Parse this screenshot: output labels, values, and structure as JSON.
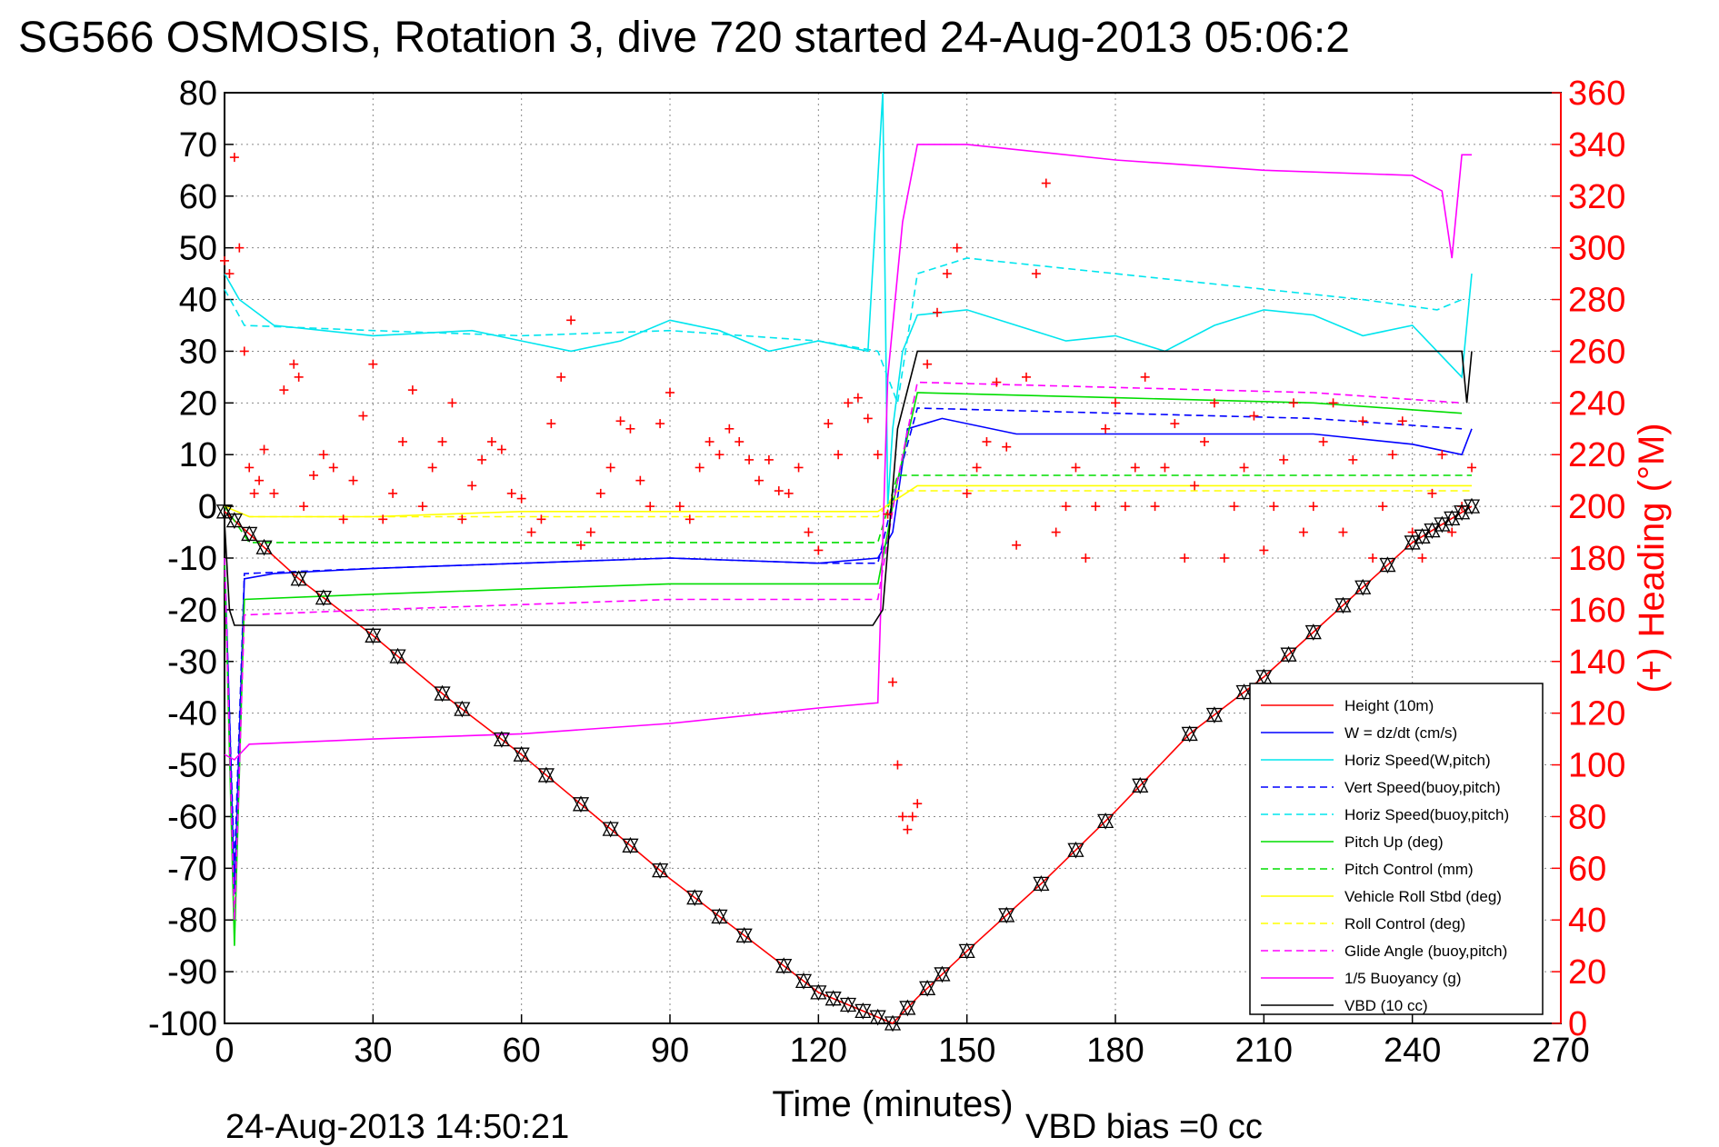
{
  "title": "SG566 OSMOSIS, Rotation 3, dive 720 started 24-Aug-2013 05:06:2",
  "footer_left": "24-Aug-2013 14:50:21",
  "footer_right": "VBD bias =0 cc",
  "colors": {
    "height": "#ff0000",
    "w": "#0000ff",
    "horiz": "#00e5ee",
    "pitch": "#00dd00",
    "roll": "#ffff00",
    "glide": "#ff00ff",
    "vbd": "#000000",
    "heading": "#ff0000"
  },
  "chart_data": {
    "type": "line",
    "title": "SG566 OSMOSIS, Rotation 3, dive 720 started 24-Aug-2013 05:06:2",
    "xlabel": "Time (minutes)",
    "ylabel": "",
    "y2label": "(+) Heading (°M)",
    "xlim": [
      0,
      270
    ],
    "ylim": [
      -100,
      80
    ],
    "y2lim": [
      0,
      360
    ],
    "xticks": [
      0,
      30,
      60,
      90,
      120,
      150,
      180,
      210,
      240,
      270
    ],
    "yticks": [
      80,
      70,
      60,
      50,
      40,
      30,
      20,
      10,
      0,
      -10,
      -20,
      -30,
      -40,
      -50,
      -60,
      -70,
      -80,
      -90,
      -100
    ],
    "y2ticks": [
      360,
      340,
      320,
      300,
      280,
      260,
      240,
      220,
      200,
      180,
      160,
      140,
      120,
      100,
      80,
      60,
      40,
      20,
      0
    ],
    "grid": true,
    "legend_position": "bottom-right",
    "series": [
      {
        "name": "Height (10m)",
        "color": "#ff0000",
        "dash": "solid",
        "x": [
          0,
          15,
          30,
          45,
          60,
          75,
          90,
          105,
          120,
          130,
          135,
          140,
          150,
          165,
          180,
          195,
          210,
          225,
          240,
          252
        ],
        "y": [
          -1,
          -14,
          -25,
          -37,
          -48,
          -60,
          -72,
          -83,
          -94,
          -98,
          -100,
          -95,
          -86,
          -73,
          -59,
          -44,
          -33,
          -20,
          -7,
          0
        ]
      },
      {
        "name": "W = dz/dt (cm/s)",
        "color": "#0000ff",
        "dash": "solid",
        "x": [
          0,
          1,
          2,
          4,
          10,
          30,
          60,
          90,
          120,
          132,
          135,
          138,
          145,
          160,
          190,
          220,
          240,
          250,
          252
        ],
        "y": [
          -10,
          -40,
          -75,
          -14,
          -13,
          -12,
          -11,
          -10,
          -11,
          -10,
          -5,
          15,
          17,
          14,
          14,
          14,
          12,
          10,
          15
        ]
      },
      {
        "name": "Horiz Speed(W,pitch)",
        "color": "#00e5ee",
        "dash": "solid",
        "x": [
          0,
          3,
          10,
          30,
          50,
          60,
          70,
          80,
          90,
          100,
          110,
          120,
          130,
          133,
          134,
          135,
          137,
          140,
          150,
          160,
          170,
          180,
          190,
          200,
          210,
          220,
          230,
          240,
          250,
          252
        ],
        "y": [
          45,
          40,
          35,
          33,
          34,
          32,
          30,
          32,
          36,
          34,
          30,
          32,
          30,
          80,
          0,
          15,
          30,
          37,
          38,
          35,
          32,
          33,
          30,
          35,
          38,
          37,
          33,
          35,
          25,
          45
        ]
      },
      {
        "name": "Vert Speed(buoy,pitch)",
        "color": "#0000ff",
        "dash": "dashed",
        "x": [
          0,
          2,
          4,
          30,
          60,
          90,
          120,
          132,
          136,
          140,
          180,
          220,
          250
        ],
        "y": [
          -10,
          -70,
          -13,
          -12,
          -11,
          -10,
          -11,
          -11,
          5,
          19,
          18,
          17,
          15
        ]
      },
      {
        "name": "Horiz Speed(buoy,pitch)",
        "color": "#00e5ee",
        "dash": "dashed",
        "x": [
          0,
          4,
          30,
          60,
          90,
          120,
          132,
          136,
          140,
          150,
          170,
          190,
          210,
          230,
          245,
          250
        ],
        "y": [
          42,
          35,
          34,
          33,
          34,
          32,
          30,
          20,
          45,
          48,
          46,
          44,
          42,
          40,
          38,
          40
        ]
      },
      {
        "name": "Pitch Up (deg)",
        "color": "#00dd00",
        "dash": "solid",
        "x": [
          0,
          2,
          4,
          30,
          60,
          90,
          120,
          132,
          136,
          140,
          180,
          220,
          250
        ],
        "y": [
          -10,
          -85,
          -18,
          -17,
          -16,
          -15,
          -15,
          -15,
          5,
          22,
          21,
          20,
          18
        ]
      },
      {
        "name": "Pitch Control (mm)",
        "color": "#00dd00",
        "dash": "dashed",
        "x": [
          0,
          5,
          132,
          136,
          252
        ],
        "y": [
          0,
          -7,
          -7,
          6,
          6
        ]
      },
      {
        "name": "Vehicle Roll Stbd (deg)",
        "color": "#ffff00",
        "dash": "solid",
        "x": [
          0,
          5,
          30,
          60,
          90,
          120,
          132,
          140,
          180,
          220,
          252
        ],
        "y": [
          0,
          -2,
          -2,
          -1,
          -1,
          -1,
          -1,
          4,
          4,
          4,
          4
        ]
      },
      {
        "name": "Roll Control (deg)",
        "color": "#ffff00",
        "dash": "dashed",
        "x": [
          0,
          5,
          132,
          136,
          252
        ],
        "y": [
          0,
          -2,
          -2,
          3,
          3
        ]
      },
      {
        "name": "Glide Angle (buoy,pitch)",
        "color": "#ff00ff",
        "dash": "dashed",
        "x": [
          0,
          2,
          4,
          30,
          60,
          90,
          120,
          132,
          136,
          140,
          180,
          220,
          250
        ],
        "y": [
          -10,
          -80,
          -21,
          -20,
          -19,
          -18,
          -18,
          -18,
          5,
          24,
          23,
          22,
          20
        ]
      },
      {
        "name": "1/5 Buoyancy (g)",
        "color": "#ff00ff",
        "dash": "solid",
        "x": [
          0,
          2,
          5,
          30,
          60,
          90,
          120,
          132,
          134,
          137,
          140,
          150,
          180,
          210,
          240,
          246,
          248,
          250,
          252
        ],
        "y": [
          -48,
          -49,
          -46,
          -45,
          -44,
          -42,
          -39,
          -38,
          25,
          55,
          70,
          70,
          67,
          65,
          64,
          61,
          48,
          68,
          68
        ]
      },
      {
        "name": "VBD (10 cc)",
        "color": "#000000",
        "dash": "solid",
        "x": [
          0,
          1,
          2,
          131,
          133,
          136,
          140,
          250,
          251,
          252
        ],
        "y": [
          -3,
          -20,
          -23,
          -23,
          -20,
          15,
          30,
          30,
          20,
          30
        ]
      }
    ],
    "heading_points": [
      [
        0,
        295
      ],
      [
        1,
        290
      ],
      [
        2,
        335
      ],
      [
        3,
        300
      ],
      [
        4,
        260
      ],
      [
        5,
        215
      ],
      [
        6,
        205
      ],
      [
        7,
        210
      ],
      [
        8,
        222
      ],
      [
        10,
        205
      ],
      [
        12,
        245
      ],
      [
        14,
        255
      ],
      [
        15,
        250
      ],
      [
        16,
        200
      ],
      [
        18,
        212
      ],
      [
        20,
        220
      ],
      [
        22,
        215
      ],
      [
        24,
        195
      ],
      [
        26,
        210
      ],
      [
        28,
        235
      ],
      [
        30,
        255
      ],
      [
        32,
        195
      ],
      [
        34,
        205
      ],
      [
        36,
        225
      ],
      [
        38,
        245
      ],
      [
        40,
        200
      ],
      [
        42,
        215
      ],
      [
        44,
        225
      ],
      [
        46,
        240
      ],
      [
        48,
        195
      ],
      [
        50,
        208
      ],
      [
        52,
        218
      ],
      [
        54,
        225
      ],
      [
        56,
        222
      ],
      [
        58,
        205
      ],
      [
        60,
        203
      ],
      [
        62,
        190
      ],
      [
        64,
        195
      ],
      [
        66,
        232
      ],
      [
        68,
        250
      ],
      [
        70,
        272
      ],
      [
        72,
        185
      ],
      [
        74,
        190
      ],
      [
        76,
        205
      ],
      [
        78,
        215
      ],
      [
        80,
        233
      ],
      [
        82,
        230
      ],
      [
        84,
        210
      ],
      [
        86,
        200
      ],
      [
        88,
        232
      ],
      [
        90,
        244
      ],
      [
        92,
        200
      ],
      [
        94,
        195
      ],
      [
        96,
        215
      ],
      [
        98,
        225
      ],
      [
        100,
        220
      ],
      [
        102,
        230
      ],
      [
        104,
        225
      ],
      [
        106,
        218
      ],
      [
        108,
        210
      ],
      [
        110,
        218
      ],
      [
        112,
        206
      ],
      [
        114,
        205
      ],
      [
        116,
        215
      ],
      [
        118,
        190
      ],
      [
        120,
        183
      ],
      [
        122,
        232
      ],
      [
        124,
        220
      ],
      [
        126,
        240
      ],
      [
        128,
        242
      ],
      [
        130,
        234
      ],
      [
        132,
        220
      ],
      [
        134,
        197
      ],
      [
        135,
        132
      ],
      [
        136,
        100
      ],
      [
        137,
        80
      ],
      [
        138,
        75
      ],
      [
        139,
        80
      ],
      [
        140,
        85
      ],
      [
        142,
        255
      ],
      [
        144,
        275
      ],
      [
        146,
        290
      ],
      [
        148,
        300
      ],
      [
        150,
        205
      ],
      [
        152,
        215
      ],
      [
        154,
        225
      ],
      [
        156,
        248
      ],
      [
        158,
        223
      ],
      [
        160,
        185
      ],
      [
        162,
        250
      ],
      [
        164,
        290
      ],
      [
        166,
        325
      ],
      [
        168,
        190
      ],
      [
        170,
        200
      ],
      [
        172,
        215
      ],
      [
        174,
        180
      ],
      [
        176,
        200
      ],
      [
        178,
        230
      ],
      [
        180,
        240
      ],
      [
        182,
        200
      ],
      [
        184,
        215
      ],
      [
        186,
        250
      ],
      [
        188,
        200
      ],
      [
        190,
        215
      ],
      [
        192,
        232
      ],
      [
        194,
        180
      ],
      [
        196,
        208
      ],
      [
        198,
        225
      ],
      [
        200,
        240
      ],
      [
        202,
        180
      ],
      [
        204,
        200
      ],
      [
        206,
        215
      ],
      [
        208,
        235
      ],
      [
        210,
        183
      ],
      [
        212,
        200
      ],
      [
        214,
        218
      ],
      [
        216,
        240
      ],
      [
        218,
        190
      ],
      [
        220,
        200
      ],
      [
        222,
        225
      ],
      [
        224,
        240
      ],
      [
        226,
        190
      ],
      [
        228,
        218
      ],
      [
        230,
        233
      ],
      [
        232,
        180
      ],
      [
        234,
        200
      ],
      [
        236,
        220
      ],
      [
        238,
        233
      ],
      [
        240,
        190
      ],
      [
        242,
        180
      ],
      [
        244,
        205
      ],
      [
        246,
        220
      ],
      [
        248,
        190
      ],
      [
        250,
        200
      ],
      [
        252,
        215
      ]
    ],
    "vbd_markers_x": [
      0,
      2,
      5,
      8,
      15,
      20,
      30,
      35,
      44,
      48,
      56,
      60,
      65,
      72,
      78,
      82,
      88,
      95,
      100,
      105,
      113,
      117,
      120,
      123,
      126,
      129,
      132,
      135,
      138,
      142,
      145,
      150,
      158,
      165,
      172,
      178,
      185,
      195,
      200,
      206,
      210,
      215,
      220,
      226,
      230,
      235,
      240,
      242,
      244,
      246,
      248,
      250,
      252
    ]
  }
}
